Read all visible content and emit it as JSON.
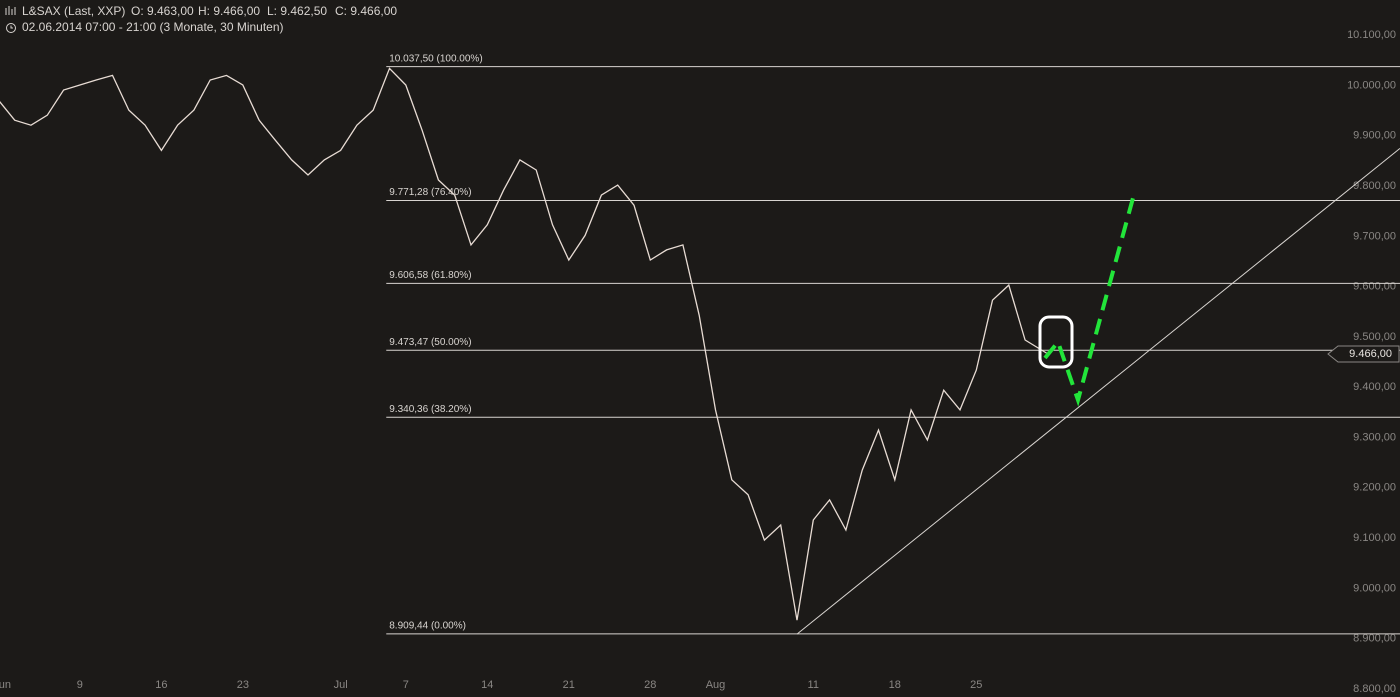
{
  "chart_data": {
    "type": "line",
    "title": "L&SAX (Last, XXP)",
    "ohlc": [
      "O: 9.463,00",
      "H: 9.466,00",
      "L: 9.462,50",
      "C: 9.466,00"
    ],
    "subtitle": "02.06.2014 07:00 - 21:00 (3 Monate, 30 Minuten)",
    "color": "#e8dcd4",
    "x": [
      0,
      1,
      2,
      3,
      4,
      5,
      6,
      7,
      8,
      9,
      10,
      11,
      12,
      13,
      14,
      15,
      16,
      17,
      18,
      19,
      20,
      21,
      22,
      23,
      24,
      25,
      26,
      27,
      28,
      29,
      30,
      31,
      32,
      33,
      34,
      35,
      36,
      37,
      38,
      39,
      40,
      41,
      42,
      43,
      44,
      45,
      46,
      47,
      48,
      49,
      50,
      51,
      52,
      53,
      54,
      55,
      56,
      57,
      58,
      59,
      60,
      61,
      62,
      63,
      64.4
    ],
    "values": [
      9971,
      9931,
      9921,
      9941,
      9991,
      10001,
      10011,
      10020,
      9951,
      9921,
      9871,
      9921,
      9951,
      10011,
      10020,
      10001,
      9931,
      9891,
      9852,
      9822,
      9852,
      9871,
      9921,
      9951,
      10034,
      10001,
      9911,
      9812,
      9782,
      9683,
      9723,
      9792,
      9852,
      9832,
      9723,
      9653,
      9702,
      9782,
      9802,
      9762,
      9653,
      9673,
      9683,
      9543,
      9355,
      9216,
      9186,
      9096,
      9126,
      8937,
      9136,
      9176,
      9116,
      9235,
      9315,
      9216,
      9355,
      9295,
      9394,
      9355,
      9434,
      9573,
      9603,
      9494,
      9466
    ],
    "xlim": [
      0.1,
      86
    ],
    "ylim": [
      8784,
      10170
    ],
    "xticks": [
      {
        "value": 0.4,
        "label": "un"
      },
      5,
      10,
      15,
      {
        "value": 21,
        "label": "Jul"
      },
      25,
      30,
      35,
      40,
      {
        "value": 44,
        "label": "Aug"
      },
      50,
      55,
      60
    ],
    "yticks": [
      {
        "value": 10100,
        "label": "10.100,00"
      },
      {
        "value": 10000,
        "label": "10.000,00"
      },
      {
        "value": 9900,
        "label": "9.900,00"
      },
      {
        "value": 9800,
        "label": "9.800,00"
      },
      {
        "value": 9700,
        "label": "9.700,00"
      },
      {
        "value": 9600,
        "label": "9.600,00"
      },
      {
        "value": 9500,
        "label": "9.500,00"
      },
      {
        "value": 9400,
        "label": "9.400,00"
      },
      {
        "value": 9300,
        "label": "9.300,00"
      },
      {
        "value": 9200,
        "label": "9.200,00"
      },
      {
        "value": 9100,
        "label": "9.100,00"
      },
      {
        "value": 9000,
        "label": "9.000,00"
      },
      {
        "value": 8900,
        "label": "8.900,00"
      },
      {
        "value": 8800,
        "label": "8.800,00"
      }
    ],
    "xtick_labels_text": [
      "9",
      "16",
      "23",
      "7",
      "14",
      "21",
      "28",
      "11",
      "18",
      "25"
    ],
    "fib_levels": [
      {
        "value": 10037.5,
        "label": "10.037,50 (100.00%)"
      },
      {
        "value": 9771.28,
        "label": "9.771,28 (76.40%)"
      },
      {
        "value": 9606.58,
        "label": "9.606,58 (61.80%)"
      },
      {
        "value": 9473.47,
        "label": "9.473,47 (50.00%)"
      },
      {
        "value": 9340.36,
        "label": "9.340,36 (38.20%)"
      },
      {
        "value": 8909.44,
        "label": "8.909,44 (0.00%)"
      }
    ],
    "fib_start_x": 23.8,
    "trendline": {
      "x": [
        49,
        86
      ],
      "values": [
        8909,
        9875
      ]
    },
    "last_price": {
      "value": 9466,
      "label": "9.466,00"
    }
  }
}
